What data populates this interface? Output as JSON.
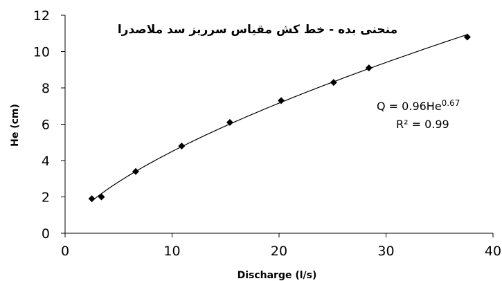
{
  "chart_data": {
    "type": "scatter",
    "title": "منحنی بده - خط کش مقیاس سرریز سد ملاصدرا",
    "xlabel": "Discharge (l/s)",
    "ylabel": "He (cm)",
    "xlim": [
      0,
      40
    ],
    "ylim": [
      0,
      12
    ],
    "xticks": [
      0,
      10,
      20,
      30,
      40
    ],
    "yticks": [
      0,
      2,
      4,
      6,
      8,
      10,
      12
    ],
    "grid": false,
    "series": [
      {
        "marker": "diamond",
        "color": "#000000",
        "points": [
          {
            "x": 2.5,
            "y": 1.9
          },
          {
            "x": 3.4,
            "y": 2.0
          },
          {
            "x": 6.6,
            "y": 3.4
          },
          {
            "x": 10.9,
            "y": 4.8
          },
          {
            "x": 15.4,
            "y": 6.1
          },
          {
            "x": 20.2,
            "y": 7.3
          },
          {
            "x": 25.1,
            "y": 8.3
          },
          {
            "x": 28.4,
            "y": 9.1
          },
          {
            "x": 37.6,
            "y": 10.8
          }
        ]
      }
    ],
    "trendline": {
      "type": "power",
      "color": "#000000"
    },
    "annotations": {
      "equation_prefix": "Q = 0.96He",
      "equation_exponent": "0.67",
      "r_squared": "R² = 0.99"
    }
  }
}
